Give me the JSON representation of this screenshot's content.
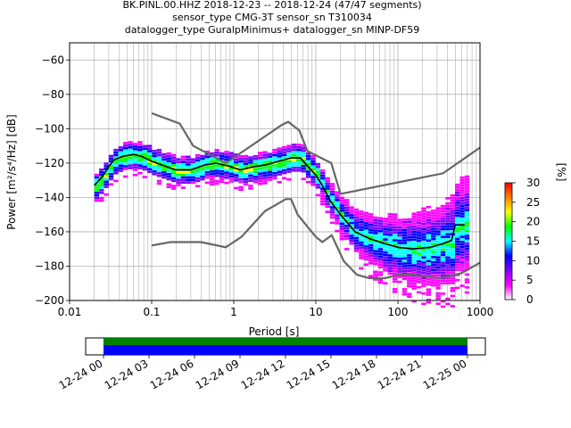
{
  "chart_data": {
    "type": "heatmap",
    "title_lines": [
      "BK.PINL.00.HHZ   2018-12-23 -- 2018-12-24  (47/47 segments)",
      "sensor_type CMG-3T sensor_sn T310034",
      "datalogger_type GuralpMinimus+ datalogger_sn MINP-DF59"
    ],
    "xlabel": "Period [s]",
    "ylabel": "Power [m²/s⁴/Hz] [dB]",
    "xscale": "log",
    "xlim": [
      0.01,
      1000
    ],
    "ylim": [
      -200,
      -50
    ],
    "xticks": [
      {
        "value": 0.01,
        "label": "0.01"
      },
      {
        "value": 0.1,
        "label": "0.1"
      },
      {
        "value": 1,
        "label": "1"
      },
      {
        "value": 10,
        "label": "10"
      },
      {
        "value": 100,
        "label": "100"
      },
      {
        "value": 1000,
        "label": "1000"
      }
    ],
    "yticks": [
      {
        "value": -60,
        "label": "−60"
      },
      {
        "value": -80,
        "label": "−80"
      },
      {
        "value": -100,
        "label": "−100"
      },
      {
        "value": -120,
        "label": "−120"
      },
      {
        "value": -140,
        "label": "−140"
      },
      {
        "value": -160,
        "label": "−160"
      },
      {
        "value": -180,
        "label": "−180"
      },
      {
        "value": -200,
        "label": "−200"
      }
    ],
    "grid": true,
    "noise_models": {
      "high": [
        [
          0.1,
          -91
        ],
        [
          0.22,
          -97
        ],
        [
          0.32,
          -110
        ],
        [
          0.8,
          -120
        ],
        [
          3.8,
          -98
        ],
        [
          4.6,
          -96
        ],
        [
          6.3,
          -101
        ],
        [
          7.9,
          -113
        ],
        [
          15.4,
          -120
        ],
        [
          20,
          -138
        ],
        [
          354,
          -126
        ],
        [
          1000,
          -111
        ]
      ],
      "low": [
        [
          0.1,
          -168
        ],
        [
          0.17,
          -166
        ],
        [
          0.4,
          -166
        ],
        [
          0.8,
          -169
        ],
        [
          1.24,
          -163
        ],
        [
          2.4,
          -148
        ],
        [
          4.3,
          -141
        ],
        [
          5,
          -141
        ],
        [
          6,
          -150
        ],
        [
          10,
          -163
        ],
        [
          12,
          -166
        ],
        [
          15.6,
          -162
        ],
        [
          21.9,
          -177
        ],
        [
          31.6,
          -185
        ],
        [
          45,
          -187
        ],
        [
          70,
          -187
        ],
        [
          101,
          -185
        ],
        [
          154,
          -185
        ],
        [
          328,
          -187
        ],
        [
          600,
          -184
        ],
        [
          1000,
          -178
        ]
      ]
    },
    "mode_curve": [
      [
        0.02,
        -133
      ],
      [
        0.025,
        -128
      ],
      [
        0.03,
        -122
      ],
      [
        0.035,
        -118
      ],
      [
        0.045,
        -116
      ],
      [
        0.06,
        -115
      ],
      [
        0.075,
        -116
      ],
      [
        0.1,
        -119
      ],
      [
        0.15,
        -122
      ],
      [
        0.2,
        -124
      ],
      [
        0.3,
        -124
      ],
      [
        0.45,
        -121
      ],
      [
        0.6,
        -120
      ],
      [
        0.9,
        -122
      ],
      [
        1.2,
        -124
      ],
      [
        1.8,
        -122
      ],
      [
        2.5,
        -121
      ],
      [
        3.5,
        -119
      ],
      [
        5,
        -117
      ],
      [
        6.5,
        -117
      ],
      [
        8,
        -122
      ],
      [
        10,
        -127
      ],
      [
        12,
        -133
      ],
      [
        15,
        -142
      ],
      [
        20,
        -150
      ],
      [
        30,
        -160
      ],
      [
        45,
        -164
      ],
      [
        70,
        -167
      ],
      [
        100,
        -169
      ],
      [
        150,
        -170
      ],
      [
        250,
        -169
      ],
      [
        350,
        -167
      ],
      [
        450,
        -165
      ],
      [
        500,
        -156
      ],
      [
        650,
        -156
      ]
    ],
    "scatter_cells_note": "",
    "colorbar": {
      "label": "[%]",
      "min": 0,
      "max": 30,
      "ticks": [
        {
          "value": 0,
          "label": "0"
        },
        {
          "value": 5,
          "label": "5"
        },
        {
          "value": 10,
          "label": "10"
        },
        {
          "value": 15,
          "label": "15"
        },
        {
          "value": 20,
          "label": "20"
        },
        {
          "value": 25,
          "label": "25"
        },
        {
          "value": 30,
          "label": "30"
        }
      ],
      "colors": [
        "#ffffff",
        "#ff00ff",
        "#8000ff",
        "#0000ff",
        "#00ffff",
        "#00ff00",
        "#ffff00",
        "#ff8000",
        "#ff0000"
      ]
    },
    "timeline": {
      "ticks": [
        "12-24 00",
        "12-24 03",
        "12-24 06",
        "12-24 09",
        "12-24 12",
        "12-24 15",
        "12-24 18",
        "12-24 21",
        "12-25 00"
      ],
      "coverage_colors": {
        "data": "#008000",
        "used": "#0000ff"
      }
    }
  }
}
